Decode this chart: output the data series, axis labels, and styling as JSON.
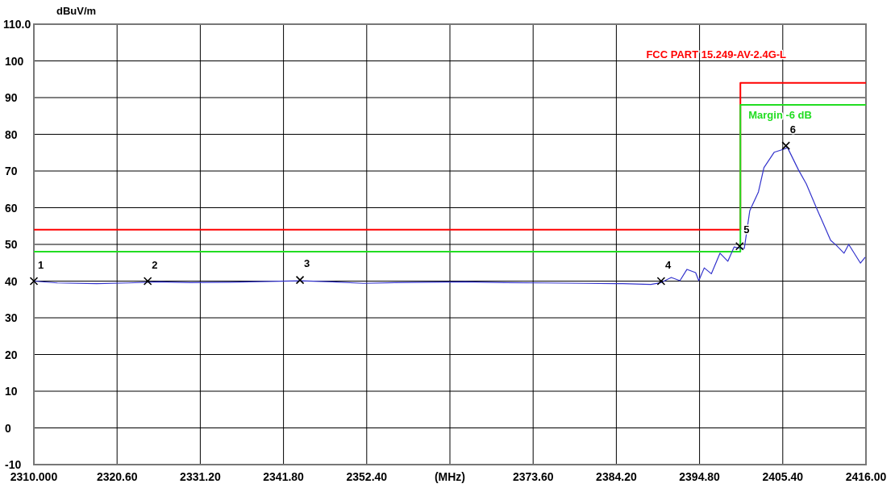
{
  "chart_data": {
    "type": "line",
    "ylabel": "dBuV/m",
    "xlabel": "(MHz)",
    "xlim": [
      2310,
      2416
    ],
    "xticks": [
      {
        "value": 2310,
        "label": "2310.000"
      },
      {
        "value": 2320.6,
        "label": "2320.60"
      },
      {
        "value": 2331.2,
        "label": "2331.20"
      },
      {
        "value": 2341.8,
        "label": "2341.80"
      },
      {
        "value": 2352.4,
        "label": "2352.40"
      },
      {
        "value": 2363,
        "label": null
      },
      {
        "value": 2373.6,
        "label": "2373.60"
      },
      {
        "value": 2384.2,
        "label": "2384.20"
      },
      {
        "value": 2394.8,
        "label": "2394.80"
      },
      {
        "value": 2405.4,
        "label": "2405.40"
      },
      {
        "value": 2416,
        "label": "2416.00"
      }
    ],
    "ylim": [
      -10,
      110
    ],
    "yticks": [
      -10,
      0,
      10,
      20,
      30,
      40,
      50,
      60,
      70,
      80,
      90,
      100,
      {
        "value": 110,
        "label": "110.0"
      }
    ],
    "grid": true,
    "line_style": "solid",
    "series": [
      {
        "name": "FCC PART 15.249-AV-2.4G-L",
        "color": "#ff0000",
        "x": [
          2310,
          2400,
          2400,
          2416
        ],
        "values": [
          54,
          54,
          94,
          94
        ]
      },
      {
        "name": "Margin -6 dB",
        "color": "#22dd22",
        "x": [
          2310,
          2400,
          2400,
          2416
        ],
        "values": [
          48,
          48,
          88,
          88
        ]
      },
      {
        "color": "#3333cc",
        "x": [
          2310,
          2313,
          2318,
          2322,
          2326,
          2330,
          2335,
          2340,
          2344,
          2348,
          2352,
          2356,
          2360,
          2365,
          2370,
          2375,
          2380,
          2385,
          2388.6,
          2389.9,
          2391.2,
          2392.3,
          2393.2,
          2394.3,
          2394.7,
          2395.4,
          2396.3,
          2397.4,
          2398.4,
          2399.2,
          2399.8,
          2400.5,
          2401.2,
          2402.3,
          2403.0,
          2404.3,
          2405.6,
          2406.0,
          2407.4,
          2408.4,
          2409.7,
          2411.5,
          2412.2,
          2413.2,
          2413.8,
          2415.3,
          2415.9
        ],
        "values": [
          40,
          39.5,
          39.3,
          39.5,
          39.8,
          39.6,
          39.7,
          39.9,
          40.1,
          39.8,
          39.4,
          39.6,
          39.7,
          39.8,
          39.6,
          39.5,
          39.4,
          39.3,
          39.1,
          39.6,
          41,
          40.1,
          43.2,
          42.3,
          40.1,
          43.6,
          42,
          47.6,
          45.4,
          49.3,
          49,
          48.9,
          59.2,
          64.3,
          70.9,
          75.1,
          76,
          76.4,
          70.3,
          66.5,
          59.9,
          51.1,
          49.8,
          47.6,
          50,
          44.9,
          46.5
        ]
      },
      {
        "type": "scatter",
        "marker": "cross",
        "color": "#000000",
        "x": [
          2310,
          2324.5,
          2343.9,
          2389.9,
          2399.9,
          2405.8
        ],
        "values": [
          40,
          40,
          40.3,
          40,
          49.5,
          76.9
        ]
      }
    ],
    "annotations": [
      {
        "text": "1",
        "x": 2310,
        "y": 40
      },
      {
        "text": "2",
        "x": 2324.5,
        "y": 40
      },
      {
        "text": "3",
        "x": 2343.9,
        "y": 40.3
      },
      {
        "text": "4",
        "x": 2389.9,
        "y": 40
      },
      {
        "text": "5",
        "x": 2399.9,
        "y": 49.5
      },
      {
        "text": "6",
        "x": 2405.8,
        "y": 76.9
      }
    ]
  }
}
